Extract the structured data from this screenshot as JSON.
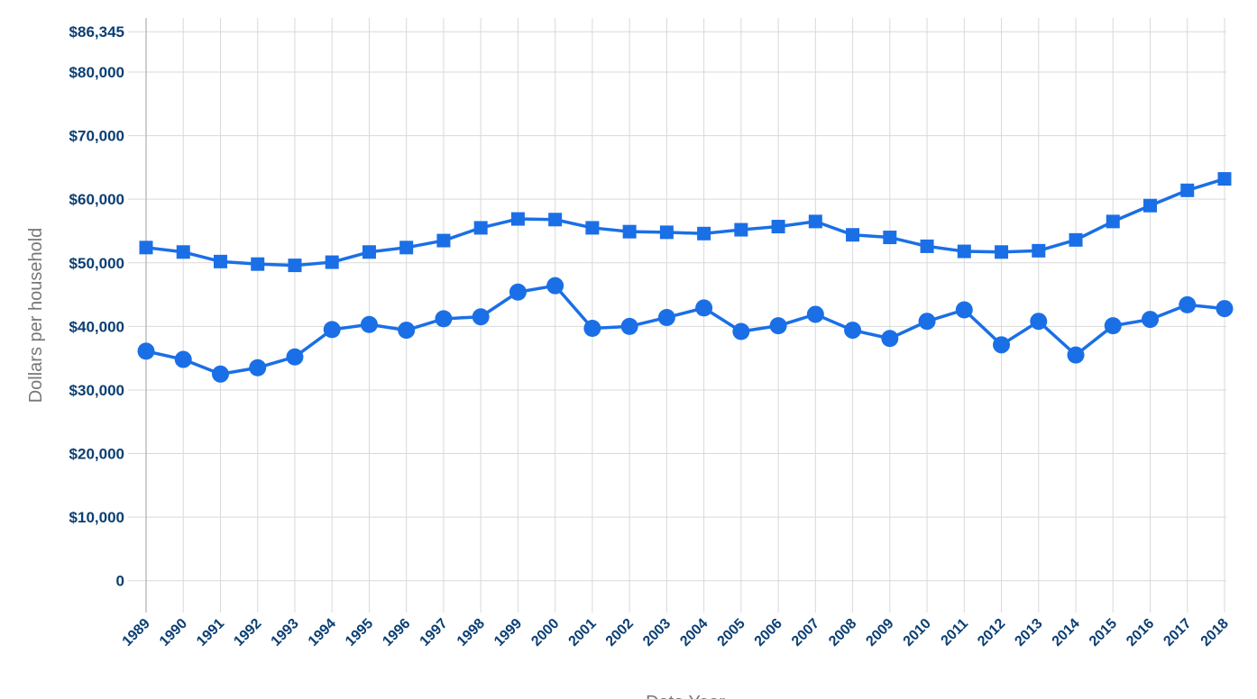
{
  "chart_data": {
    "type": "line",
    "xlabel": "Data Year",
    "ylabel": "Dollars per household",
    "ylim": [
      -5000,
      88500
    ],
    "yticks": [
      {
        "value": 86345,
        "label": "$86,345"
      },
      {
        "value": 80000,
        "label": "$80,000"
      },
      {
        "value": 70000,
        "label": "$70,000"
      },
      {
        "value": 60000,
        "label": "$60,000"
      },
      {
        "value": 50000,
        "label": "$50,000"
      },
      {
        "value": 40000,
        "label": "$40,000"
      },
      {
        "value": 30000,
        "label": "$30,000"
      },
      {
        "value": 20000,
        "label": "$20,000"
      },
      {
        "value": 10000,
        "label": "$10,000"
      },
      {
        "value": 0,
        "label": "0"
      }
    ],
    "x": [
      "1989",
      "1990",
      "1991",
      "1992",
      "1993",
      "1994",
      "1995",
      "1996",
      "1997",
      "1998",
      "1999",
      "2000",
      "2001",
      "2002",
      "2003",
      "2004",
      "2005",
      "2006",
      "2007",
      "2008",
      "2009",
      "2010",
      "2011",
      "2012",
      "2013",
      "2014",
      "2015",
      "2016",
      "2017",
      "2018"
    ],
    "grid": true,
    "series": [
      {
        "marker": "square",
        "color": "#1a6fe6",
        "values": [
          52400,
          51700,
          50200,
          49800,
          49600,
          50100,
          51700,
          52400,
          53500,
          55500,
          56900,
          56800,
          55500,
          54900,
          54800,
          54600,
          55200,
          55700,
          56500,
          54400,
          54000,
          52600,
          51800,
          51700,
          51900,
          53600,
          56500,
          59000,
          61400,
          63200
        ]
      },
      {
        "marker": "circle",
        "color": "#1a6fe6",
        "values": [
          36100,
          34800,
          32500,
          33500,
          35200,
          39500,
          40300,
          39400,
          41200,
          41500,
          45400,
          46400,
          39700,
          40000,
          41400,
          42900,
          39200,
          40100,
          41900,
          39400,
          38100,
          40800,
          42600,
          37100,
          40800,
          35500,
          40100,
          41100,
          43400,
          42800
        ]
      }
    ]
  }
}
